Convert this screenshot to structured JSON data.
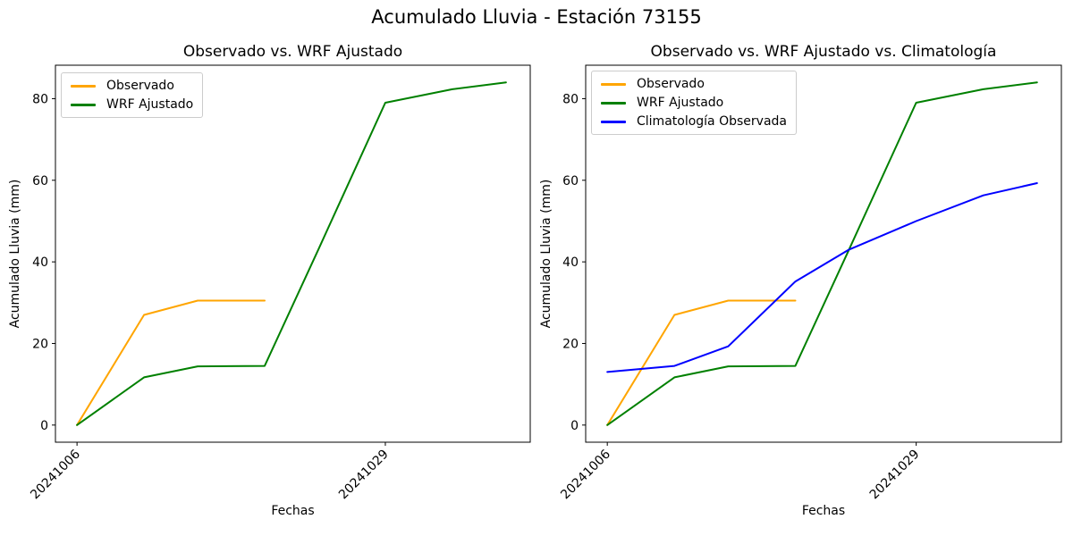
{
  "figure": {
    "title": "Acumulado Lluvia - Estación 73155",
    "background": "#ffffff"
  },
  "colors": {
    "observado": "#FFA500",
    "wrf": "#008000",
    "clima": "#0000FF",
    "axis": "#000000",
    "legend_border": "#cccccc"
  },
  "chart_data": [
    {
      "type": "line",
      "title": "Observado vs. WRF Ajustado",
      "xlabel": "Fechas",
      "ylabel": "Acumulado Lluvia (mm)",
      "x_unit": "days since 20241006",
      "xlim": [
        -1.61,
        33.81
      ],
      "ylim": [
        -4.2,
        88.2
      ],
      "yticks": [
        0,
        20,
        40,
        60,
        80
      ],
      "xticks": [
        {
          "day": 0,
          "label": "20241006"
        },
        {
          "day": 23,
          "label": "20241029"
        }
      ],
      "grid": false,
      "legend_position": "upper-left",
      "series": [
        {
          "name": "Observado",
          "color_key": "observado",
          "x": [
            0,
            5,
            9,
            14
          ],
          "values": [
            0,
            27,
            30.5,
            30.5
          ]
        },
        {
          "name": "WRF Ajustado",
          "color_key": "wrf",
          "x": [
            0,
            5,
            9,
            14,
            18,
            23,
            28,
            32
          ],
          "values": [
            0,
            11.7,
            14.4,
            14.5,
            43,
            79,
            82.3,
            84
          ]
        }
      ]
    },
    {
      "type": "line",
      "title": "Observado vs. WRF Ajustado vs. Climatología",
      "xlabel": "Fechas",
      "ylabel": "Acumulado Lluvia (mm)",
      "x_unit": "days since 20241006",
      "xlim": [
        -1.61,
        33.81
      ],
      "ylim": [
        -4.2,
        88.2
      ],
      "yticks": [
        0,
        20,
        40,
        60,
        80
      ],
      "xticks": [
        {
          "day": 0,
          "label": "20241006"
        },
        {
          "day": 23,
          "label": "20241029"
        }
      ],
      "grid": false,
      "legend_position": "upper-left",
      "series": [
        {
          "name": "Observado",
          "color_key": "observado",
          "x": [
            0,
            5,
            9,
            14
          ],
          "values": [
            0,
            27,
            30.5,
            30.5
          ]
        },
        {
          "name": "WRF Ajustado",
          "color_key": "wrf",
          "x": [
            0,
            5,
            9,
            14,
            18,
            23,
            28,
            32
          ],
          "values": [
            0,
            11.7,
            14.4,
            14.5,
            43,
            79,
            82.3,
            84
          ]
        },
        {
          "name": "Climatología Observada",
          "color_key": "clima",
          "x": [
            0,
            5,
            9,
            14,
            18,
            23,
            28,
            32
          ],
          "values": [
            13,
            14.5,
            19.3,
            35.2,
            43,
            50,
            56.3,
            59.3
          ]
        }
      ]
    }
  ]
}
